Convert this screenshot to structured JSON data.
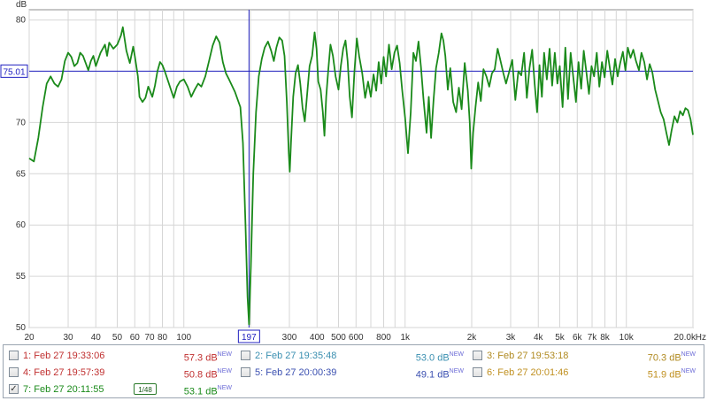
{
  "chart_data": {
    "type": "line",
    "y_unit_label": "dB",
    "x_unit_label": "Hz",
    "x_scale": "log",
    "xlim": [
      20,
      20000
    ],
    "ylim": [
      50,
      81
    ],
    "grid": true,
    "y_ticks": [
      50,
      55,
      60,
      65,
      70,
      75,
      80
    ],
    "y_tick_labels": [
      "50",
      "55",
      "60",
      "65",
      "70",
      "75",
      "80"
    ],
    "x_ticks": [
      20,
      30,
      40,
      50,
      60,
      70,
      80,
      100,
      300,
      400,
      500,
      600,
      800,
      1000,
      2000,
      3000,
      4000,
      5000,
      6000,
      7000,
      8000,
      10000,
      20000
    ],
    "x_tick_labels": [
      "20",
      "30",
      "40",
      "50",
      "60",
      "70",
      "80",
      "100",
      "300",
      "400",
      "500",
      "600",
      "800",
      "1k",
      "2k",
      "3k",
      "4k",
      "5k",
      "6k",
      "7k",
      "8k",
      "10k",
      "20.0k"
    ],
    "cursor": {
      "x": 197,
      "x_label": "197",
      "y": 75.01,
      "y_label": "75.01"
    },
    "series": [
      {
        "color": "#1a8a1a",
        "points": [
          [
            20,
            66.5
          ],
          [
            21,
            66.2
          ],
          [
            22,
            68.5
          ],
          [
            23,
            71.5
          ],
          [
            24,
            73.8
          ],
          [
            25,
            74.5
          ],
          [
            26,
            73.8
          ],
          [
            27,
            73.5
          ],
          [
            28,
            74.2
          ],
          [
            29,
            76.0
          ],
          [
            30,
            76.8
          ],
          [
            31,
            76.4
          ],
          [
            32,
            75.5
          ],
          [
            33,
            75.8
          ],
          [
            34,
            76.8
          ],
          [
            35,
            76.5
          ],
          [
            36,
            75.8
          ],
          [
            37,
            75.1
          ],
          [
            38,
            76.0
          ],
          [
            39,
            76.5
          ],
          [
            40,
            75.5
          ],
          [
            42,
            76.8
          ],
          [
            44,
            77.6
          ],
          [
            45,
            76.5
          ],
          [
            46,
            77.8
          ],
          [
            48,
            77.2
          ],
          [
            50,
            77.6
          ],
          [
            52,
            78.5
          ],
          [
            53,
            79.3
          ],
          [
            55,
            77.0
          ],
          [
            57,
            75.8
          ],
          [
            59,
            77.4
          ],
          [
            60,
            76.5
          ],
          [
            62,
            74.5
          ],
          [
            63,
            72.5
          ],
          [
            65,
            72.0
          ],
          [
            67,
            72.4
          ],
          [
            69,
            73.5
          ],
          [
            70,
            73.2
          ],
          [
            72,
            72.5
          ],
          [
            74,
            73.6
          ],
          [
            76,
            75.0
          ],
          [
            78,
            75.9
          ],
          [
            80,
            75.6
          ],
          [
            82,
            75.0
          ],
          [
            85,
            74.0
          ],
          [
            88,
            73.0
          ],
          [
            90,
            72.4
          ],
          [
            93,
            73.5
          ],
          [
            96,
            74.0
          ],
          [
            100,
            74.2
          ],
          [
            104,
            73.5
          ],
          [
            108,
            72.5
          ],
          [
            112,
            73.2
          ],
          [
            116,
            73.8
          ],
          [
            120,
            73.5
          ],
          [
            125,
            74.5
          ],
          [
            130,
            76.0
          ],
          [
            135,
            77.5
          ],
          [
            140,
            78.4
          ],
          [
            145,
            77.8
          ],
          [
            150,
            75.9
          ],
          [
            155,
            74.8
          ],
          [
            160,
            74.2
          ],
          [
            170,
            73.0
          ],
          [
            180,
            71.5
          ],
          [
            185,
            68.0
          ],
          [
            190,
            60.0
          ],
          [
            194,
            53.0
          ],
          [
            197,
            50.3
          ],
          [
            201,
            56.0
          ],
          [
            206,
            65.0
          ],
          [
            212,
            71.0
          ],
          [
            218,
            74.5
          ],
          [
            225,
            76.2
          ],
          [
            232,
            77.3
          ],
          [
            240,
            77.9
          ],
          [
            248,
            77.0
          ],
          [
            255,
            76.0
          ],
          [
            262,
            77.3
          ],
          [
            270,
            78.3
          ],
          [
            278,
            78.0
          ],
          [
            285,
            76.5
          ],
          [
            292,
            72.0
          ],
          [
            298,
            67.0
          ],
          [
            301,
            65.2
          ],
          [
            305,
            68.0
          ],
          [
            312,
            72.5
          ],
          [
            320,
            74.8
          ],
          [
            328,
            75.6
          ],
          [
            336,
            73.8
          ],
          [
            344,
            71.4
          ],
          [
            352,
            70.1
          ],
          [
            360,
            72.5
          ],
          [
            370,
            75.5
          ],
          [
            380,
            76.5
          ],
          [
            390,
            78.8
          ],
          [
            398,
            77.2
          ],
          [
            405,
            74.0
          ],
          [
            415,
            73.2
          ],
          [
            425,
            71.0
          ],
          [
            432,
            68.7
          ],
          [
            440,
            72.5
          ],
          [
            450,
            75.2
          ],
          [
            460,
            77.6
          ],
          [
            472,
            76.5
          ],
          [
            485,
            74.5
          ],
          [
            500,
            73.2
          ],
          [
            512,
            75.5
          ],
          [
            525,
            77.2
          ],
          [
            538,
            78.0
          ],
          [
            550,
            76.0
          ],
          [
            562,
            72.5
          ],
          [
            575,
            70.5
          ],
          [
            590,
            75.0
          ],
          [
            605,
            78.2
          ],
          [
            620,
            76.5
          ],
          [
            640,
            74.8
          ],
          [
            660,
            72.4
          ],
          [
            680,
            74.0
          ],
          [
            700,
            72.5
          ],
          [
            720,
            74.7
          ],
          [
            740,
            73.1
          ],
          [
            760,
            75.9
          ],
          [
            780,
            73.8
          ],
          [
            800,
            76.4
          ],
          [
            820,
            74.5
          ],
          [
            845,
            77.6
          ],
          [
            870,
            75.2
          ],
          [
            895,
            76.8
          ],
          [
            920,
            77.5
          ],
          [
            945,
            75.8
          ],
          [
            970,
            73.2
          ],
          [
            1000,
            70.5
          ],
          [
            1030,
            67.0
          ],
          [
            1060,
            71.0
          ],
          [
            1090,
            76.8
          ],
          [
            1120,
            76.0
          ],
          [
            1150,
            77.9
          ],
          [
            1180,
            75.4
          ],
          [
            1210,
            72.4
          ],
          [
            1250,
            69.0
          ],
          [
            1280,
            72.5
          ],
          [
            1310,
            68.5
          ],
          [
            1345,
            72.2
          ],
          [
            1380,
            75.3
          ],
          [
            1420,
            76.8
          ],
          [
            1460,
            78.7
          ],
          [
            1490,
            78.0
          ],
          [
            1520,
            76.5
          ],
          [
            1560,
            73.2
          ],
          [
            1600,
            75.3
          ],
          [
            1650,
            72.0
          ],
          [
            1700,
            71.0
          ],
          [
            1750,
            73.4
          ],
          [
            1800,
            71.3
          ],
          [
            1860,
            75.8
          ],
          [
            1920,
            73.1
          ],
          [
            1960,
            70.0
          ],
          [
            1990,
            65.5
          ],
          [
            2030,
            69.0
          ],
          [
            2080,
            71.5
          ],
          [
            2140,
            73.9
          ],
          [
            2200,
            72.1
          ],
          [
            2260,
            75.2
          ],
          [
            2330,
            74.5
          ],
          [
            2400,
            73.5
          ],
          [
            2470,
            74.8
          ],
          [
            2540,
            75.2
          ],
          [
            2620,
            77.2
          ],
          [
            2700,
            76.0
          ],
          [
            2780,
            74.8
          ],
          [
            2860,
            73.8
          ],
          [
            2950,
            74.9
          ],
          [
            3050,
            76.1
          ],
          [
            3150,
            72.2
          ],
          [
            3250,
            75.0
          ],
          [
            3350,
            74.6
          ],
          [
            3450,
            76.8
          ],
          [
            3550,
            72.4
          ],
          [
            3650,
            75.3
          ],
          [
            3750,
            77.1
          ],
          [
            3850,
            73.8
          ],
          [
            3950,
            71.0
          ],
          [
            4050,
            75.6
          ],
          [
            4150,
            72.5
          ],
          [
            4250,
            76.8
          ],
          [
            4370,
            74.2
          ],
          [
            4500,
            77.2
          ],
          [
            4620,
            73.6
          ],
          [
            4750,
            76.8
          ],
          [
            4880,
            73.8
          ],
          [
            5000,
            75.5
          ],
          [
            5150,
            71.5
          ],
          [
            5300,
            77.3
          ],
          [
            5450,
            72.3
          ],
          [
            5600,
            76.8
          ],
          [
            5760,
            74.4
          ],
          [
            5920,
            72.0
          ],
          [
            6080,
            75.9
          ],
          [
            6250,
            73.3
          ],
          [
            6420,
            77.0
          ],
          [
            6600,
            74.9
          ],
          [
            6780,
            72.8
          ],
          [
            6960,
            75.5
          ],
          [
            7150,
            74.5
          ],
          [
            7350,
            76.8
          ],
          [
            7550,
            73.5
          ],
          [
            7760,
            75.9
          ],
          [
            7980,
            74.4
          ],
          [
            8200,
            77.0
          ],
          [
            8420,
            75.3
          ],
          [
            8650,
            73.7
          ],
          [
            8890,
            76.2
          ],
          [
            9130,
            74.5
          ],
          [
            9380,
            75.8
          ],
          [
            9640,
            76.9
          ],
          [
            9900,
            75.1
          ],
          [
            10150,
            77.3
          ],
          [
            10450,
            76.3
          ],
          [
            10750,
            77.1
          ],
          [
            11050,
            76.0
          ],
          [
            11400,
            75.1
          ],
          [
            11700,
            76.8
          ],
          [
            12050,
            75.9
          ],
          [
            12400,
            74.2
          ],
          [
            12750,
            75.7
          ],
          [
            13100,
            74.9
          ],
          [
            13500,
            73.2
          ],
          [
            13900,
            72.1
          ],
          [
            14300,
            71.0
          ],
          [
            14750,
            70.3
          ],
          [
            15200,
            68.9
          ],
          [
            15600,
            67.8
          ],
          [
            16000,
            69.2
          ],
          [
            16500,
            70.6
          ],
          [
            17000,
            70.0
          ],
          [
            17500,
            71.1
          ],
          [
            18000,
            70.7
          ],
          [
            18500,
            71.4
          ],
          [
            19000,
            71.2
          ],
          [
            19500,
            70.3
          ],
          [
            20000,
            68.8
          ]
        ]
      }
    ]
  },
  "legend": {
    "traces": [
      {
        "label": "1: Feb 27 19:33:06",
        "value": "57.3 dB",
        "badge": "NEW",
        "color": "#c03030",
        "checked": false
      },
      {
        "label": "2: Feb 27 19:35:48",
        "value": "53.0 dB",
        "badge": "NEW",
        "color": "#3a8fb0",
        "checked": false
      },
      {
        "label": "3: Feb 27 19:53:18",
        "value": "70.3 dB",
        "badge": "NEW",
        "color": "#b08a20",
        "checked": false
      },
      {
        "label": "4: Feb 27 19:57:39",
        "value": "50.8 dB",
        "badge": "NEW",
        "color": "#c03030",
        "checked": false
      },
      {
        "label": "5: Feb 27 20:00:39",
        "value": "49.1 dB",
        "badge": "NEW",
        "color": "#3a4fb0",
        "checked": false
      },
      {
        "label": "6: Feb 27 20:01:46",
        "value": "51.9 dB",
        "badge": "NEW",
        "color": "#c09020",
        "checked": false
      },
      {
        "label": "7: Feb 27 20:11:55",
        "value": "53.1 dB",
        "badge": "NEW",
        "color": "#1a8a1a",
        "checked": true,
        "checkmark": "✓",
        "smoothing": "1/48"
      }
    ]
  }
}
